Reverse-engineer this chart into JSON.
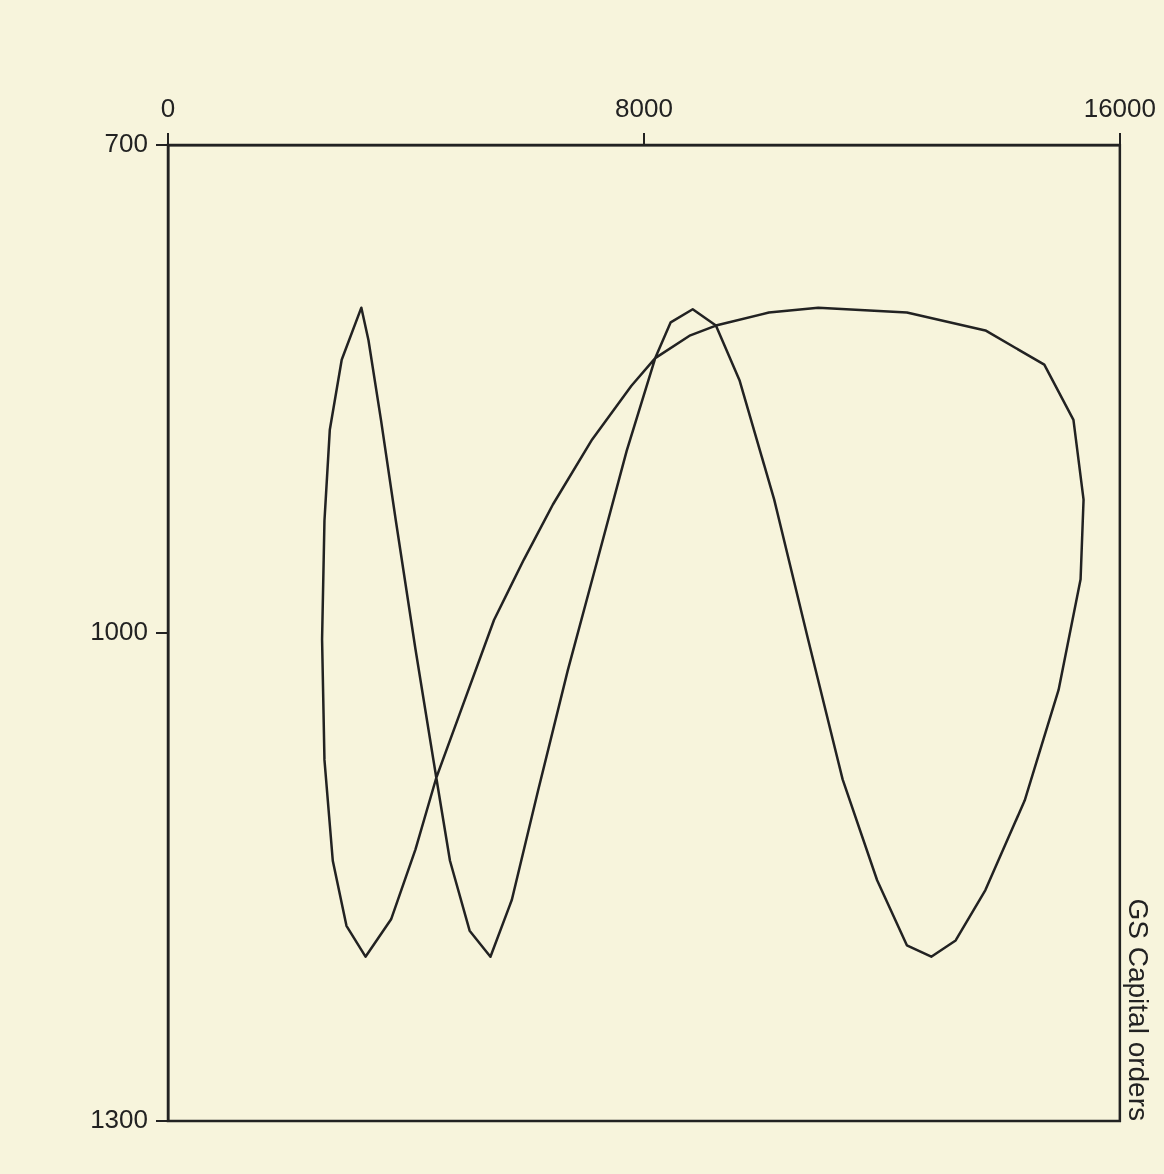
{
  "chart_data": {
    "type": "line",
    "title": "GS Capital orders",
    "series": [
      {
        "color": "#222222",
        "x": [
          3250,
          2920,
          2720,
          2630,
          2590,
          null,
          2590,
          2630,
          2770,
          3000,
          3320,
          3750,
          4160,
          4510,
          4900,
          5480,
          5980,
          6470,
          7130,
          7790,
          8190,
          8780,
          9210,
          10100,
          10930,
          12420,
          13740,
          14730,
          15220,
          15390,
          null,
          15390,
          15340,
          14970,
          14400,
          13740,
          13240,
          12830,
          12420,
          11920,
          11340,
          10760,
          10190,
          9610,
          9210,
          8820,
          8450,
          8190,
          7710,
          7220,
          6720,
          6220,
          5780,
          5420,
          5070,
          4740,
          4510,
          4160,
          3830,
          3580,
          3370,
          3250
        ],
        "values": [
          800,
          832,
          875,
          931,
          1004,
          null,
          1004,
          1078,
          1140,
          1180,
          1199,
          1176,
          1133,
          1089,
          1050,
          992,
          955,
          921,
          881,
          848,
          831,
          817,
          811,
          803,
          800,
          803,
          814,
          835,
          869,
          918,
          null,
          918,
          967,
          1035,
          1103,
          1158,
          1189,
          1199,
          1192,
          1152,
          1090,
          1004,
          918,
          845,
          811,
          801,
          809,
          831,
          888,
          955,
          1023,
          1097,
          1164,
          1199,
          1183,
          1140,
          1089,
          1010,
          931,
          869,
          820,
          800
        ]
      }
    ],
    "marker": "none",
    "xlim": [
      0,
      16000
    ],
    "xticks": [
      0,
      8000,
      16000
    ],
    "ylim": [
      1300,
      700
    ],
    "yticks": [
      700,
      1000,
      1300
    ]
  }
}
